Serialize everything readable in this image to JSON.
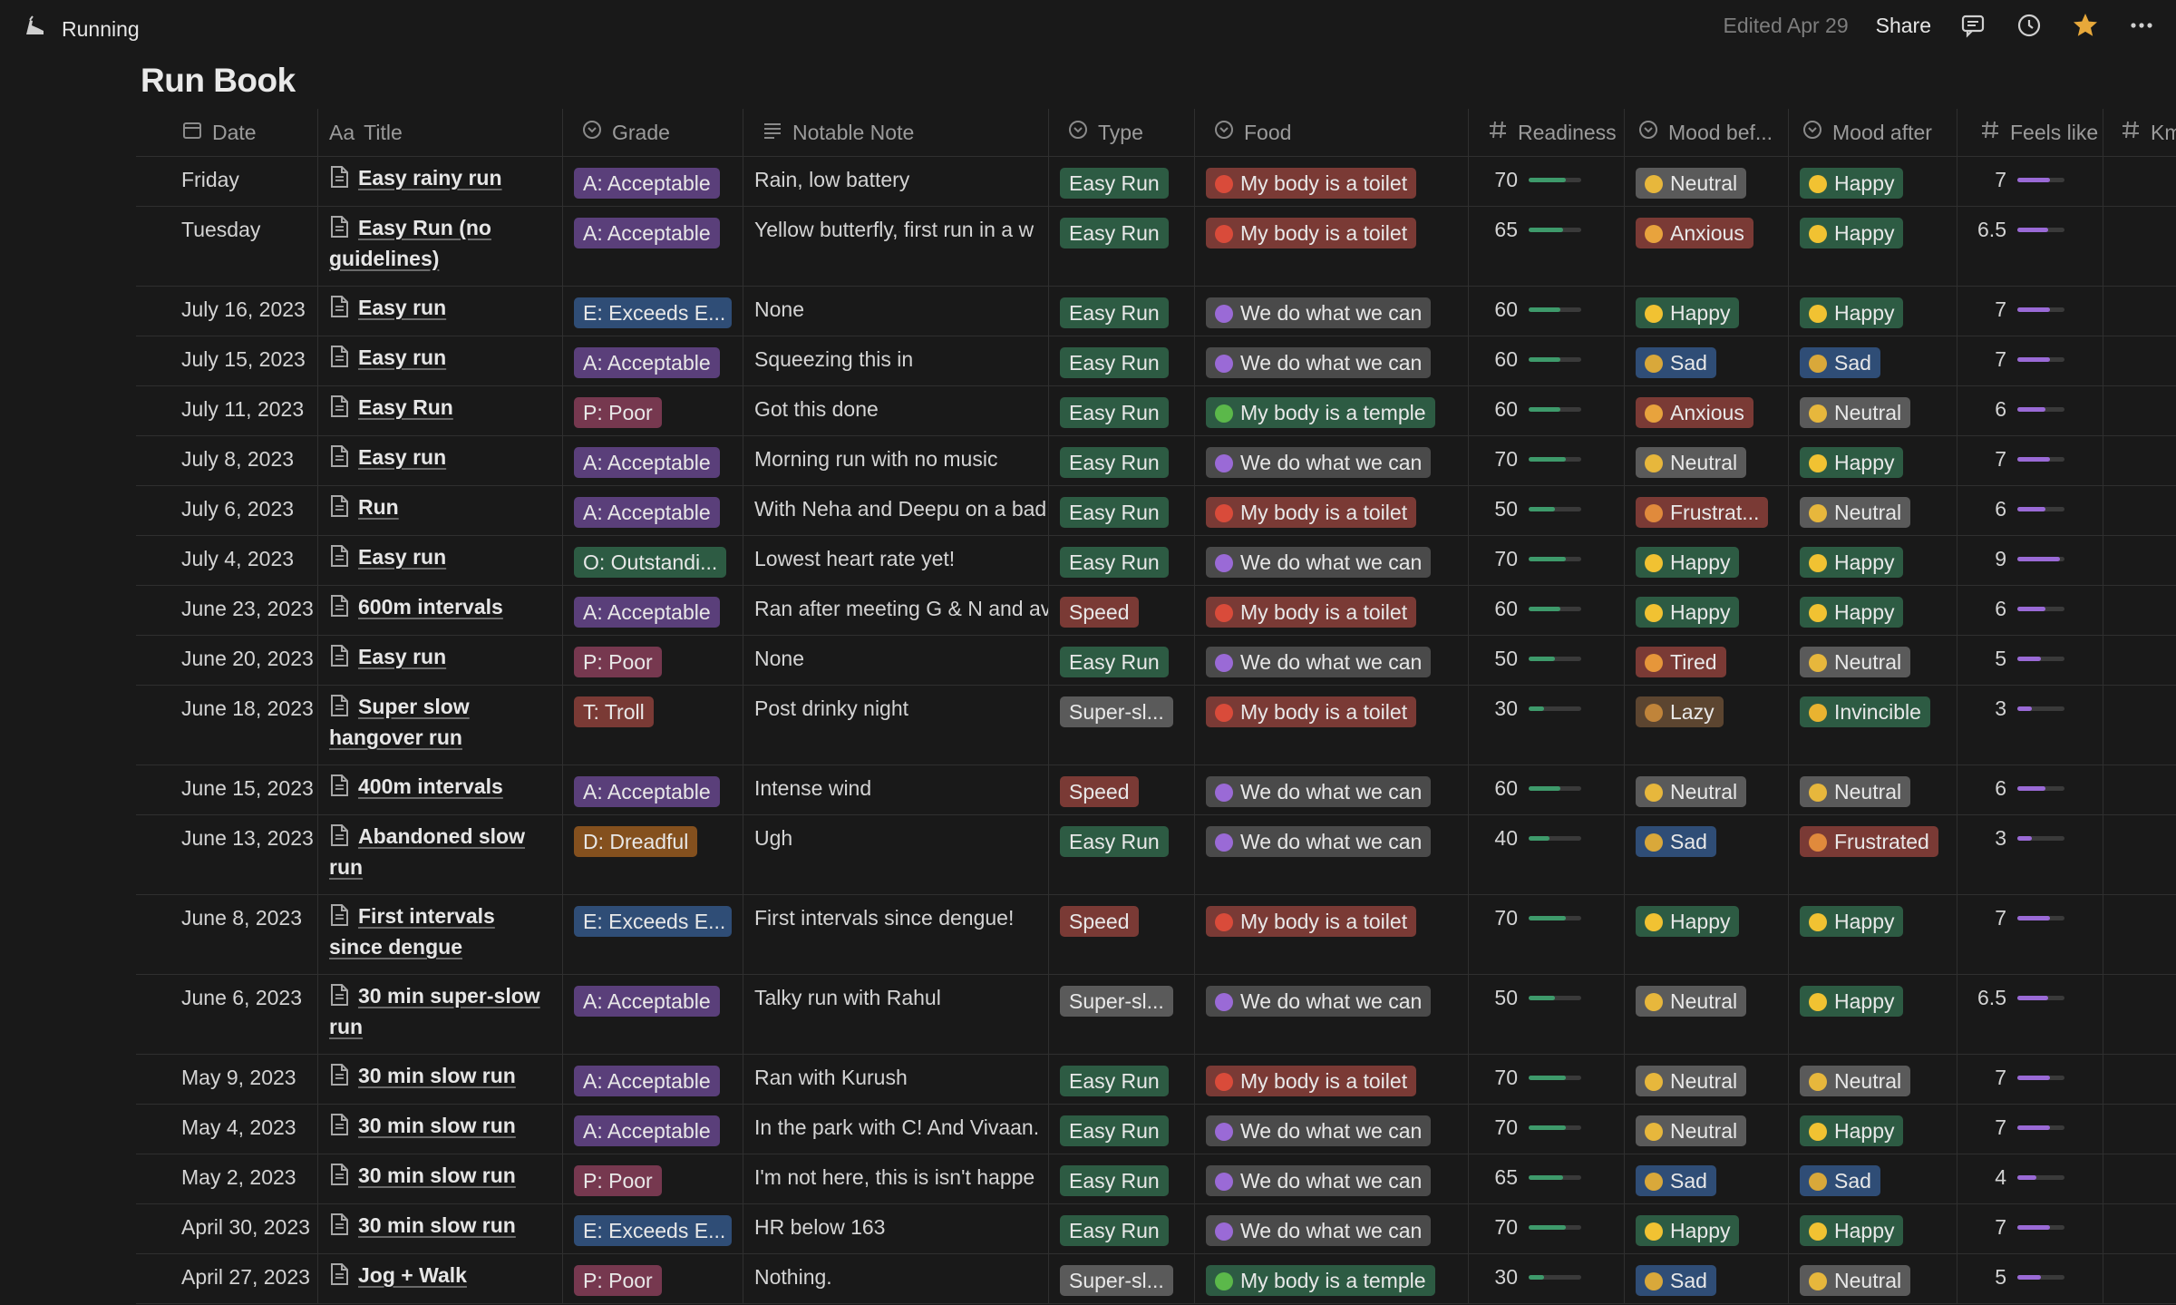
{
  "topbar": {
    "breadcrumb": "Running",
    "edited": "Edited Apr 29",
    "share": "Share",
    "icons": [
      "comment-icon",
      "history-icon",
      "star-icon",
      "more-icon"
    ]
  },
  "page_title": "Run Book",
  "columns": {
    "date": "Date",
    "title_prefix": "Aa",
    "title": "Title",
    "grade": "Grade",
    "note": "Notable Note",
    "type": "Type",
    "food": "Food",
    "readiness": "Readiness",
    "mood_before": "Mood bef...",
    "mood_after": "Mood after",
    "feels": "Feels like",
    "km": "Km"
  },
  "colors": {
    "grade": {
      "A: Acceptable": "#5a3f7a",
      "E: Exceeds E...": "#2f4d76",
      "P: Poor": "#76384f",
      "O: Outstandi...": "#2d5b43",
      "T: Troll": "#7a3a35",
      "D: Dreadful": "#84501e"
    },
    "type": {
      "Easy Run": "#2d5b43",
      "Speed": "#7a3a35",
      "Super-sl...": "#5a5a5a"
    },
    "food": {
      "My body is a toilet": "#7a3a35",
      "We do what we can": "#4a4a4a",
      "My body is a temple": "#2d5b43"
    },
    "mood": {
      "Neutral": "#5a5a5a",
      "Happy": "#2d5b43",
      "Anxious": "#7a3a35",
      "Sad": "#2f4d76",
      "Frustrat...": "#7a3a35",
      "Frustrated": "#7a3a35",
      "Tired": "#7a3a35",
      "Lazy": "#5c4530",
      "Invincible": "#2d5b43"
    },
    "emoji": {
      "Neutral": "#e7b73c",
      "Happy": "#f1c232",
      "Anxious": "#e8a33d",
      "Sad": "#d9a83a",
      "Frustrat...": "#e08a3c",
      "Frustrated": "#e08a3c",
      "Tired": "#e6963a",
      "Lazy": "#c0843a",
      "Invincible": "#e9b330",
      "My body is a toilet": "#d94b3a",
      "We do what we can": "#9a6ad6",
      "My body is a temple": "#5bb84a"
    },
    "readiness_bar": "#3e9a6b",
    "feels_bar": "#9a6ad6"
  },
  "rows": [
    {
      "date": "Friday",
      "title": "Easy rainy run",
      "grade": "A: Acceptable",
      "note": "Rain, low battery",
      "type": "Easy Run",
      "food": "My body is a toilet",
      "readiness": 70,
      "mood_before": "Neutral",
      "mood_after": "Happy",
      "feels": 7
    },
    {
      "date": "Tuesday",
      "title": "Easy Run (no guidelines)",
      "grade": "A: Acceptable",
      "note": "Yellow butterfly, first run in a w",
      "type": "Easy Run",
      "food": "My body is a toilet",
      "readiness": 65,
      "mood_before": "Anxious",
      "mood_after": "Happy",
      "feels": 6.5
    },
    {
      "date": "July 16, 2023",
      "title": "Easy run",
      "grade": "E: Exceeds E...",
      "note": "None",
      "type": "Easy Run",
      "food": "We do what we can",
      "readiness": 60,
      "mood_before": "Happy",
      "mood_after": "Happy",
      "feels": 7
    },
    {
      "date": "July 15, 2023",
      "title": "Easy run",
      "grade": "A: Acceptable",
      "note": "Squeezing this in",
      "type": "Easy Run",
      "food": "We do what we can",
      "readiness": 60,
      "mood_before": "Sad",
      "mood_after": "Sad",
      "feels": 7
    },
    {
      "date": "July 11, 2023",
      "title": "Easy Run",
      "grade": "P: Poor",
      "note": "Got this done",
      "type": "Easy Run",
      "food": "My body is a temple",
      "readiness": 60,
      "mood_before": "Anxious",
      "mood_after": "Neutral",
      "feels": 6
    },
    {
      "date": "July 8, 2023",
      "title": "Easy run",
      "grade": "A: Acceptable",
      "note": "Morning run with no music",
      "type": "Easy Run",
      "food": "We do what we can",
      "readiness": 70,
      "mood_before": "Neutral",
      "mood_after": "Happy",
      "feels": 7
    },
    {
      "date": "July 6, 2023",
      "title": "Run",
      "grade": "A: Acceptable",
      "note": "With Neha and Deepu on a bad",
      "type": "Easy Run",
      "food": "My body is a toilet",
      "readiness": 50,
      "mood_before": "Frustrat...",
      "mood_after": "Neutral",
      "feels": 6
    },
    {
      "date": "July 4, 2023",
      "title": "Easy run",
      "grade": "O: Outstandi...",
      "note": "Lowest heart rate yet!",
      "type": "Easy Run",
      "food": "We do what we can",
      "readiness": 70,
      "mood_before": "Happy",
      "mood_after": "Happy",
      "feels": 9
    },
    {
      "date": "June 23, 2023",
      "title": "600m intervals",
      "grade": "A: Acceptable",
      "note": "Ran after meeting G & N and av",
      "type": "Speed",
      "food": "My body is a toilet",
      "readiness": 60,
      "mood_before": "Happy",
      "mood_after": "Happy",
      "feels": 6
    },
    {
      "date": "June 20, 2023",
      "title": "Easy run",
      "grade": "P: Poor",
      "note": "None",
      "type": "Easy Run",
      "food": "We do what we can",
      "readiness": 50,
      "mood_before": "Tired",
      "mood_after": "Neutral",
      "feels": 5
    },
    {
      "date": "June 18, 2023",
      "title": "Super slow hangover run",
      "grade": "T: Troll",
      "note": "Post drinky night",
      "type": "Super-sl...",
      "food": "My body is a toilet",
      "readiness": 30,
      "mood_before": "Lazy",
      "mood_after": "Invincible",
      "feels": 3
    },
    {
      "date": "June 15, 2023",
      "title": "400m intervals",
      "grade": "A: Acceptable",
      "note": "Intense wind",
      "type": "Speed",
      "food": "We do what we can",
      "readiness": 60,
      "mood_before": "Neutral",
      "mood_after": "Neutral",
      "feels": 6
    },
    {
      "date": "June 13, 2023",
      "title": "Abandoned slow run",
      "grade": "D: Dreadful",
      "note": "Ugh",
      "type": "Easy Run",
      "food": "We do what we can",
      "readiness": 40,
      "mood_before": "Sad",
      "mood_after": "Frustrated",
      "feels": 3
    },
    {
      "date": "June 8, 2023",
      "title": "First intervals since dengue",
      "grade": "E: Exceeds E...",
      "note": "First intervals since dengue!",
      "type": "Speed",
      "food": "My body is a toilet",
      "readiness": 70,
      "mood_before": "Happy",
      "mood_after": "Happy",
      "feels": 7
    },
    {
      "date": "June 6, 2023",
      "title": "30 min super-slow run",
      "grade": "A: Acceptable",
      "note": "Talky run with Rahul",
      "type": "Super-sl...",
      "food": "We do what we can",
      "readiness": 50,
      "mood_before": "Neutral",
      "mood_after": "Happy",
      "feels": 6.5
    },
    {
      "date": "May 9, 2023",
      "title": "30 min slow run",
      "grade": "A: Acceptable",
      "note": "Ran with Kurush",
      "type": "Easy Run",
      "food": "My body is a toilet",
      "readiness": 70,
      "mood_before": "Neutral",
      "mood_after": "Neutral",
      "feels": 7
    },
    {
      "date": "May 4, 2023",
      "title": "30 min slow run",
      "grade": "A: Acceptable",
      "note": "In the park with C! And Vivaan.",
      "type": "Easy Run",
      "food": "We do what we can",
      "readiness": 70,
      "mood_before": "Neutral",
      "mood_after": "Happy",
      "feels": 7
    },
    {
      "date": "May 2, 2023",
      "title": "30 min slow run",
      "grade": "P: Poor",
      "note": "I'm not here, this is isn't happe",
      "type": "Easy Run",
      "food": "We do what we can",
      "readiness": 65,
      "mood_before": "Sad",
      "mood_after": "Sad",
      "feels": 4
    },
    {
      "date": "April 30, 2023",
      "title": "30 min slow run",
      "grade": "E: Exceeds E...",
      "note": "HR below 163",
      "type": "Easy Run",
      "food": "We do what we can",
      "readiness": 70,
      "mood_before": "Happy",
      "mood_after": "Happy",
      "feels": 7
    },
    {
      "date": "April 27, 2023",
      "title": "Jog + Walk",
      "grade": "P: Poor",
      "note": "Nothing.",
      "type": "Super-sl...",
      "food": "My body is a temple",
      "readiness": 30,
      "mood_before": "Sad",
      "mood_after": "Neutral",
      "feels": 5
    }
  ]
}
